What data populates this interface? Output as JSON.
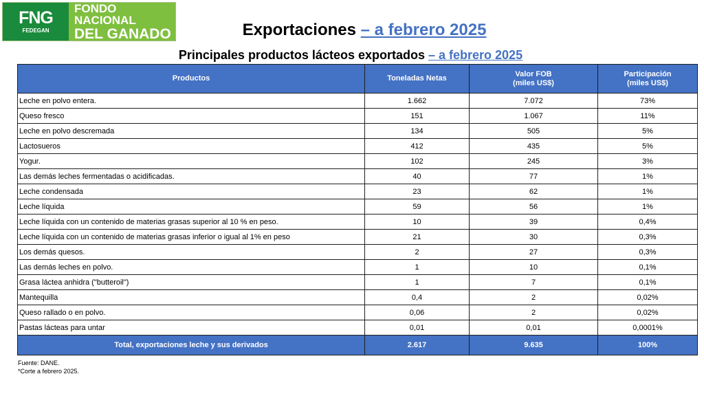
{
  "logo": {
    "mark": "FNG",
    "sub": "FEDEGAN",
    "line1": "FONDO NACIONAL",
    "line2": "DEL GANADO"
  },
  "title": {
    "main": "Exportaciones ",
    "link": "– a febrero 2025"
  },
  "subtitle": {
    "main": "Principales productos lácteos exportados ",
    "link": "– a febrero 2025"
  },
  "table": {
    "headers": {
      "productos": "Productos",
      "toneladas": "Toneladas Netas",
      "valor_1": "Valor FOB",
      "valor_2": "(miles US$)",
      "part_1": "Participación",
      "part_2": "(miles US$)"
    },
    "rows": [
      [
        "Leche en polvo entera.",
        "1.662",
        "7.072",
        "73%"
      ],
      [
        "Queso fresco",
        "151",
        "1.067",
        "11%"
      ],
      [
        "Leche en polvo descremada",
        "134",
        "505",
        "5%"
      ],
      [
        "Lactosueros",
        "412",
        "435",
        "5%"
      ],
      [
        "Yogur.",
        "102",
        "245",
        "3%"
      ],
      [
        "Las demás leches fermentadas o acidificadas.",
        "40",
        "77",
        "1%"
      ],
      [
        "Leche condensada",
        "23",
        "62",
        "1%"
      ],
      [
        "Leche líquida",
        "59",
        "56",
        "1%"
      ],
      [
        "Leche líquida con un contenido de materias grasas superior al 10 % en peso.",
        "10",
        "39",
        "0,4%"
      ],
      [
        "Leche líquida con un contenido de materias grasas inferior o igual al 1% en peso",
        "21",
        "30",
        "0,3%"
      ],
      [
        "Los demás quesos.",
        "2",
        "27",
        "0,3%"
      ],
      [
        "Las demás leches en polvo.",
        "1",
        "10",
        "0,1%"
      ],
      [
        "Grasa láctea anhidra (\"butteroil\")",
        "1",
        "7",
        "0,1%"
      ],
      [
        "Mantequilla",
        "0,4",
        "2",
        "0,02%"
      ],
      [
        "Queso rallado o en polvo.",
        "0,06",
        "2",
        "0,02%"
      ],
      [
        "Pastas lácteas para untar",
        "0,01",
        "0,01",
        "0,0001%"
      ]
    ],
    "total": [
      "Total, exportaciones leche y sus derivados",
      "2.617",
      "9.635",
      "100%"
    ]
  },
  "notes": {
    "source": "Fuente: DANE.",
    "cut": "*Corte a febrero 2025."
  },
  "colors": {
    "header_blue": "#4472c4",
    "logo_dark_green": "#1a8a3c",
    "logo_light_green": "#7fbf3f"
  }
}
